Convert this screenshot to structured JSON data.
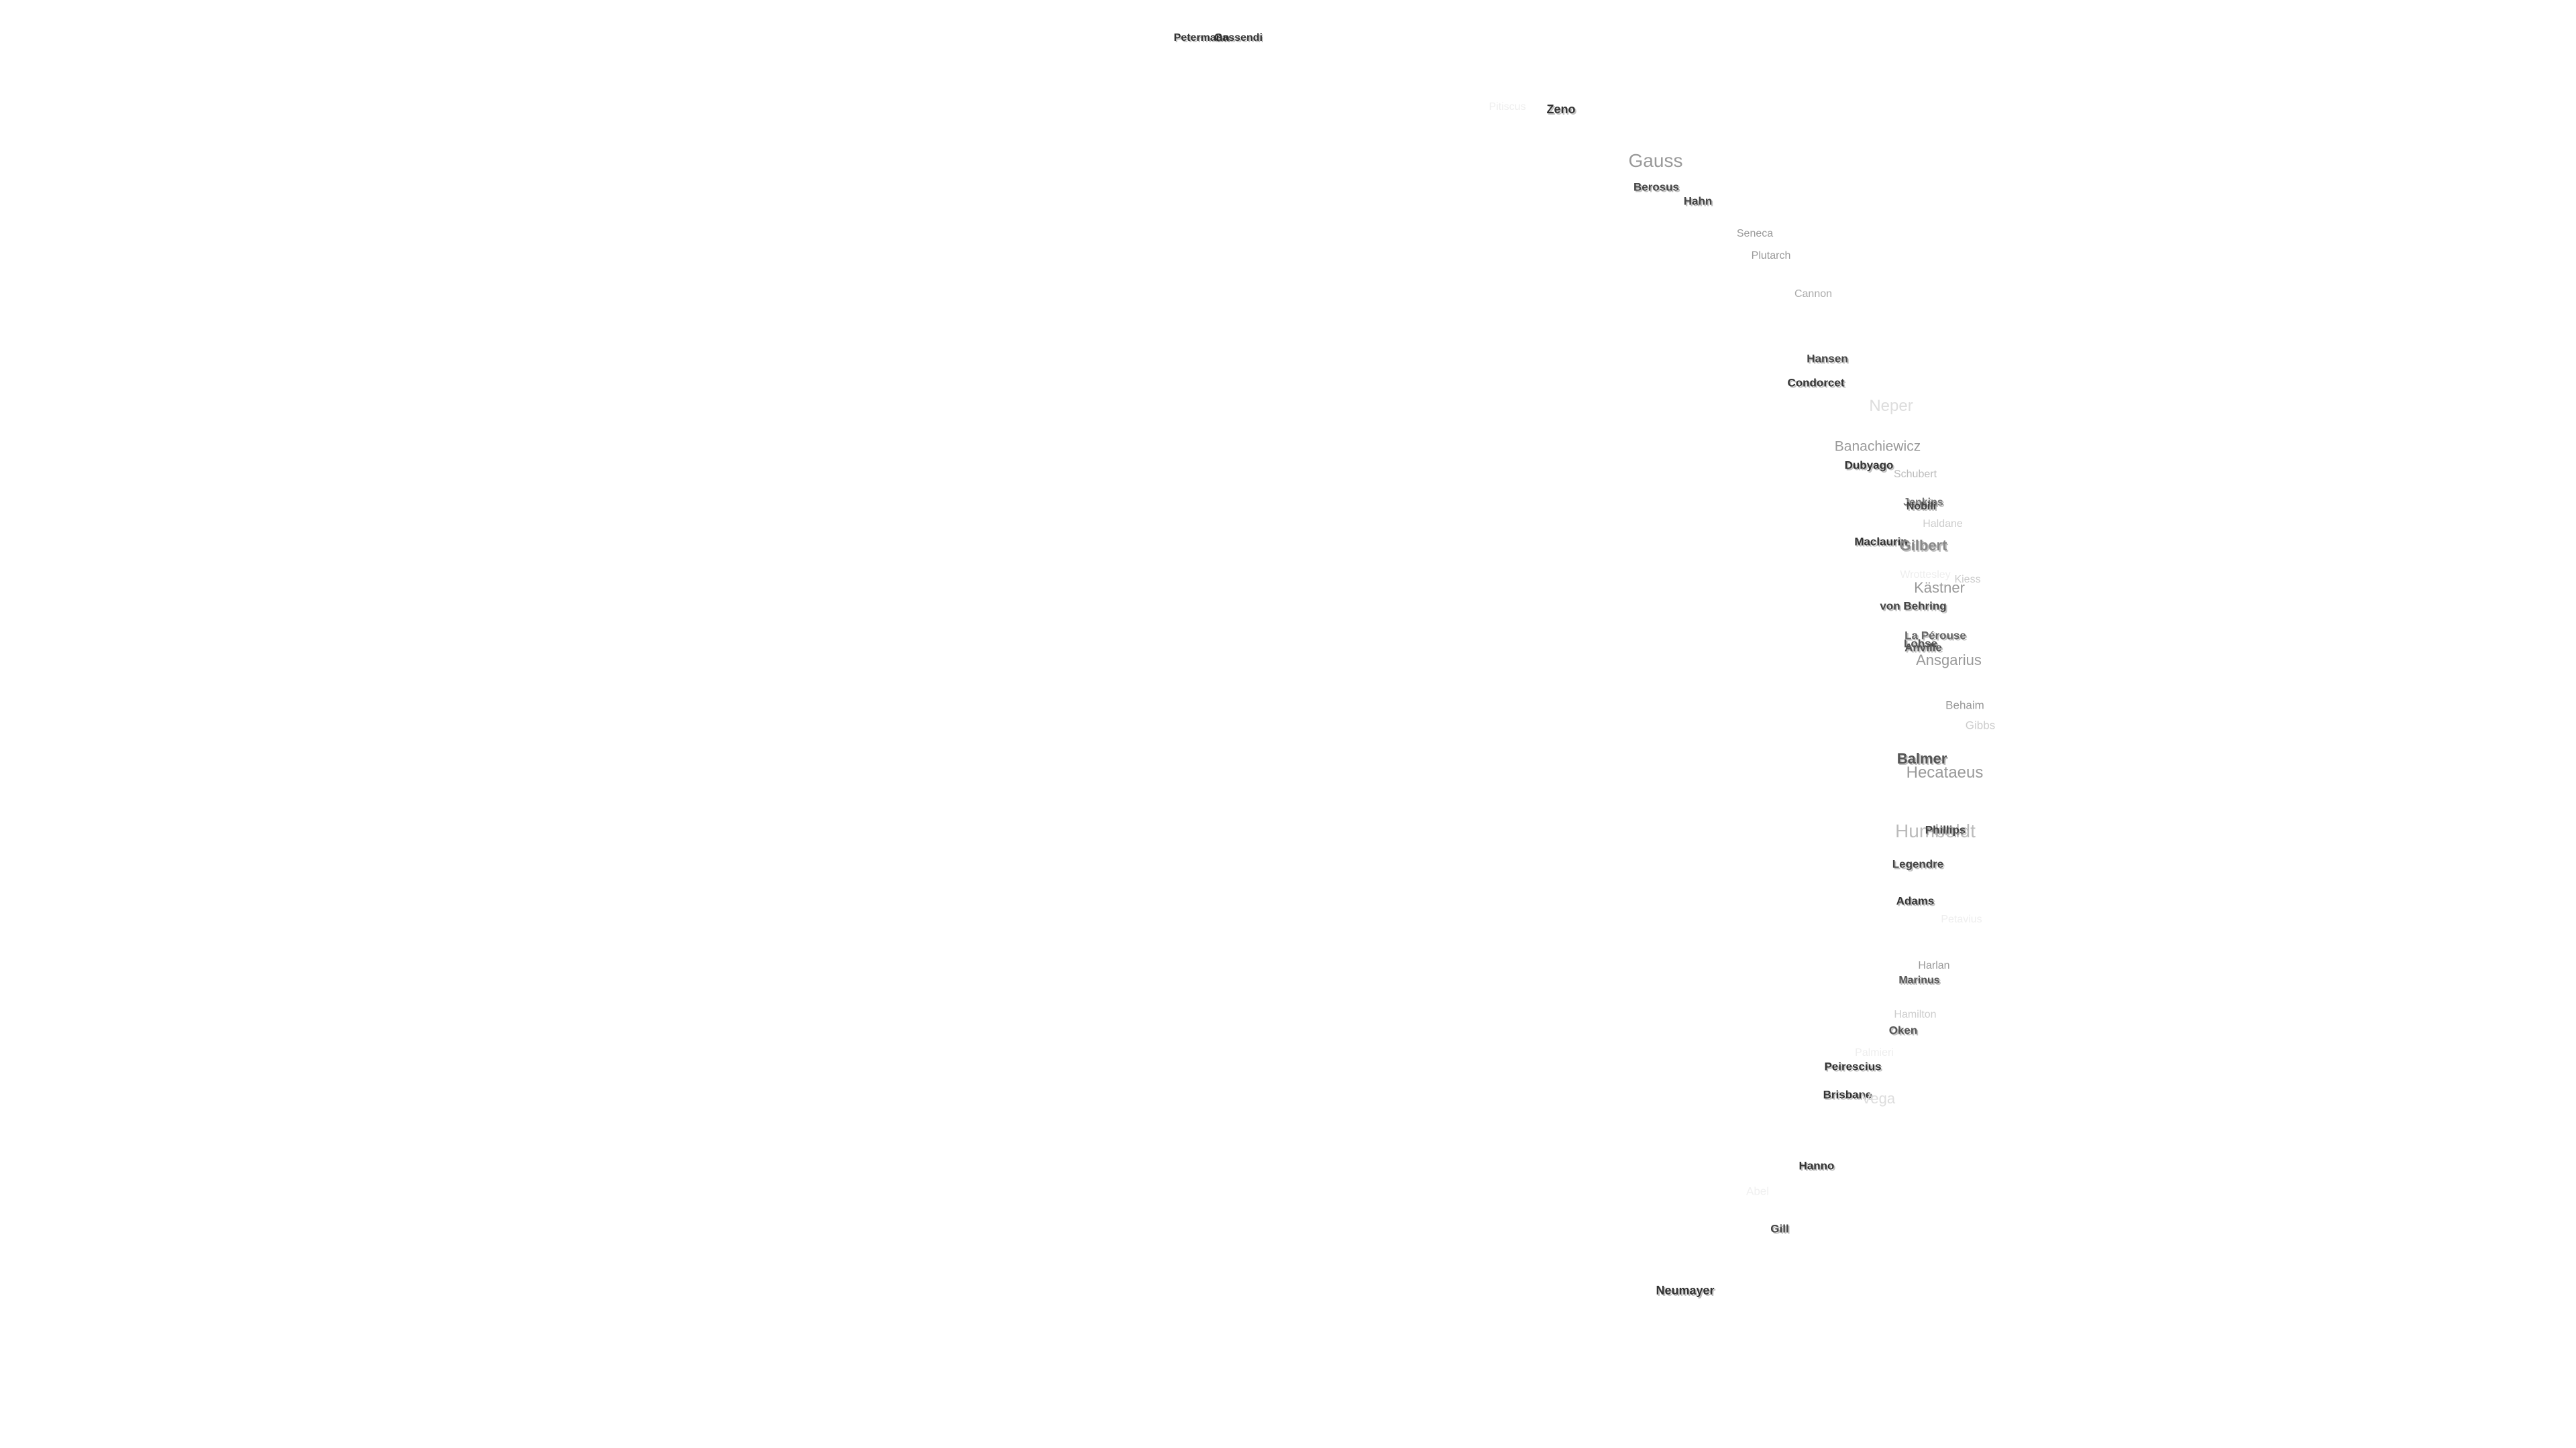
{
  "map": {
    "labels": [
      {
        "name": "Petermann",
        "tone": "#333333"
      },
      {
        "name": "Gassendi",
        "tone": "#333333"
      },
      {
        "name": "Pitiscus",
        "tone": "#eeeeee"
      },
      {
        "name": "Zeno",
        "tone": "#333333"
      },
      {
        "name": "Gauss",
        "tone": "#999999"
      },
      {
        "name": "Berosus",
        "tone": "#444444"
      },
      {
        "name": "Hahn",
        "tone": "#444444"
      },
      {
        "name": "Seneca",
        "tone": "#999999"
      },
      {
        "name": "Plutarch",
        "tone": "#999999"
      },
      {
        "name": "Cannon",
        "tone": "#aaaaaa"
      },
      {
        "name": "Hansen",
        "tone": "#444444"
      },
      {
        "name": "Condorcet",
        "tone": "#333333"
      },
      {
        "name": "Neper",
        "tone": "#dddddd"
      },
      {
        "name": "Banachiewicz",
        "tone": "#999999"
      },
      {
        "name": "Dubyago",
        "tone": "#333333"
      },
      {
        "name": "Schubert",
        "tone": "#bbbbbb"
      },
      {
        "name": "Jenkins",
        "tone": "#777777"
      },
      {
        "name": "Nobili",
        "tone": "#444444"
      },
      {
        "name": "Haldane",
        "tone": "#cccccc"
      },
      {
        "name": "Maclaurin",
        "tone": "#333333"
      },
      {
        "name": "Gilbert",
        "tone": "#888888"
      },
      {
        "name": "Kästner",
        "tone": "#999999"
      },
      {
        "name": "Kiess",
        "tone": "#cccccc"
      },
      {
        "name": "Wrottesley",
        "tone": "#eeeeee"
      },
      {
        "name": "von Behring",
        "tone": "#444444"
      },
      {
        "name": "La Pérouse",
        "tone": "#666666"
      },
      {
        "name": "Lohse",
        "tone": "#555555"
      },
      {
        "name": "Anville",
        "tone": "#555555"
      },
      {
        "name": "Ansgarius",
        "tone": "#999999"
      },
      {
        "name": "Behaim",
        "tone": "#999999"
      },
      {
        "name": "Gibbs",
        "tone": "#cccccc"
      },
      {
        "name": "Balmer",
        "tone": "#555555"
      },
      {
        "name": "Hecataeus",
        "tone": "#999999"
      },
      {
        "name": "Humboldt",
        "tone": "#bbbbbb"
      },
      {
        "name": "Phillips",
        "tone": "#444444"
      },
      {
        "name": "Legendre",
        "tone": "#444444"
      },
      {
        "name": "Adams",
        "tone": "#333333"
      },
      {
        "name": "Petavius",
        "tone": "#eeeeee"
      },
      {
        "name": "Harlan",
        "tone": "#999999"
      },
      {
        "name": "Marinus",
        "tone": "#555555"
      },
      {
        "name": "Hamilton",
        "tone": "#cccccc"
      },
      {
        "name": "Oken",
        "tone": "#555555"
      },
      {
        "name": "Palmieri",
        "tone": "#eeeeee"
      },
      {
        "name": "Peirescius",
        "tone": "#333333"
      },
      {
        "name": "Brisbane",
        "tone": "#333333"
      },
      {
        "name": "Vega",
        "tone": "#dddddd"
      },
      {
        "name": "Hanno",
        "tone": "#333333"
      },
      {
        "name": "Abel",
        "tone": "#f0f0f0"
      },
      {
        "name": "Gill",
        "tone": "#444444"
      },
      {
        "name": "Neumayer",
        "tone": "#333333"
      }
    ]
  }
}
